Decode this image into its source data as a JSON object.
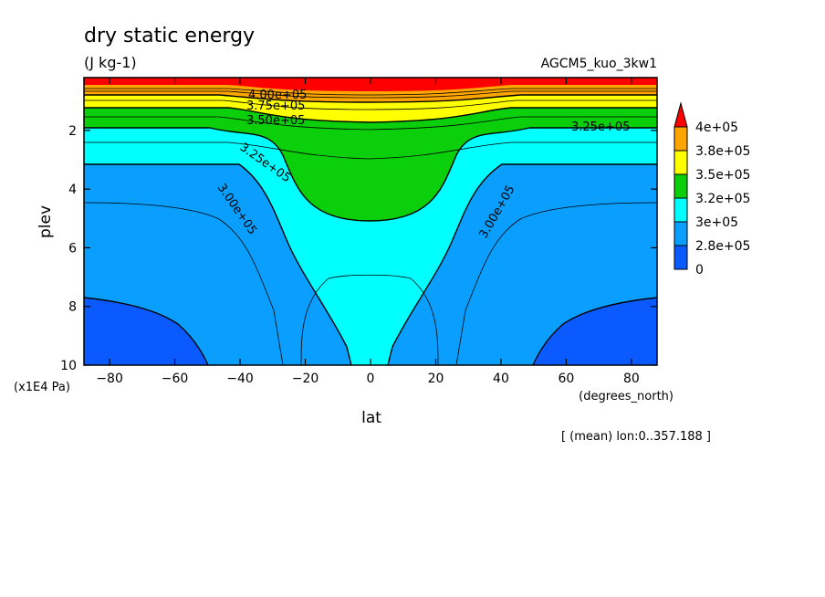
{
  "chart_data": {
    "type": "contour",
    "title": "dry static energy",
    "units": "(J kg-1)",
    "dataset": "AGCM5_kuo_3kw1",
    "xlabel": "lat",
    "xunits": "(degrees_north)",
    "ylabel": "plev",
    "yunits": "(x1E4 Pa)",
    "footnote": "[ (mean) lon:0..357.188 ]",
    "xlim": [
      -87.86,
      87.86
    ],
    "ylim": [
      10,
      0.2
    ],
    "x_ticks": [
      -80,
      -60,
      -40,
      -20,
      0,
      20,
      40,
      60,
      80
    ],
    "x_tick_labels": [
      "−80",
      "−60",
      "−40",
      "−20",
      "0",
      "20",
      "40",
      "60",
      "80"
    ],
    "y_ticks": [
      2,
      4,
      6,
      8,
      10
    ],
    "y_tick_labels": [
      "2",
      "4",
      "6",
      "8",
      "10"
    ],
    "color_levels": [
      {
        "label": "0",
        "color": "#0a5aff"
      },
      {
        "label": "2.8e+05",
        "color": "#0a9fff"
      },
      {
        "label": "3e+05",
        "color": "#00ffff"
      },
      {
        "label": "3.2e+05",
        "color": "#0acf0a"
      },
      {
        "label": "3.5e+05",
        "color": "#ffff00"
      },
      {
        "label": "3.8e+05",
        "color": "#ffa500"
      },
      {
        "label": "4e+05",
        "color": "#ff0000"
      }
    ],
    "colorbar_labels": [
      "4e+05",
      "3.8e+05",
      "3.5e+05",
      "3.2e+05",
      "3e+05",
      "2.8e+05",
      "0"
    ],
    "contour_labels": [
      {
        "text": "4.00e+05",
        "lat": -3,
        "plev": 0.5
      },
      {
        "text": "3.75e+05",
        "lat": -3,
        "plev": 0.85
      },
      {
        "text": "3.50e+05",
        "lat": -3,
        "plev": 1.4
      },
      {
        "text": "3.25e+05",
        "lat": 75,
        "plev": 1.85
      },
      {
        "text": "3.25e+05",
        "lat": -29,
        "plev": 2.8
      },
      {
        "text": "3.00e+05",
        "lat": -43,
        "plev": 4.6
      },
      {
        "text": "3.00e+05",
        "lat": 37,
        "plev": 4.6
      }
    ],
    "regions_plev_by_lat": {
      "lat": [
        -87.86,
        -80,
        -70,
        -60,
        -50,
        -40,
        -30,
        -20,
        -10,
        -5,
        0,
        5,
        10,
        20,
        30,
        40,
        50,
        60,
        70,
        80,
        87.86
      ],
      "top_380k": [
        0.55,
        0.55,
        0.55,
        0.55,
        0.55,
        0.55,
        0.5,
        0.45,
        0.42,
        0.4,
        0.4,
        0.4,
        0.42,
        0.45,
        0.5,
        0.55,
        0.55,
        0.55,
        0.55,
        0.55,
        0.55
      ],
      "top_350k": [
        1.05,
        1.05,
        1.05,
        1.05,
        1.05,
        1.05,
        1.0,
        0.9,
        0.8,
        0.75,
        0.75,
        0.75,
        0.8,
        0.9,
        1.0,
        1.05,
        1.05,
        1.05,
        1.05,
        1.05,
        1.05
      ],
      "top_320k": [
        1.8,
        1.8,
        1.8,
        1.8,
        1.8,
        1.8,
        1.7,
        1.6,
        1.55,
        1.55,
        1.55,
        1.55,
        1.55,
        1.6,
        1.7,
        1.8,
        1.8,
        1.8,
        1.8,
        1.8,
        1.8
      ],
      "boundary_320k_low": [
        2.3,
        2.3,
        2.3,
        2.3,
        2.4,
        2.5,
        2.7,
        3.0,
        4.6,
        5.0,
        5.0,
        5.0,
        4.6,
        3.0,
        2.7,
        2.5,
        2.4,
        2.3,
        2.3,
        2.3,
        2.3
      ],
      "boundary_300k": [
        3.0,
        3.0,
        3.0,
        3.0,
        3.0,
        3.0,
        3.4,
        6.4,
        7.0,
        7.0,
        7.0,
        7.0,
        7.0,
        6.4,
        3.4,
        3.0,
        3.0,
        3.0,
        3.0,
        3.0,
        3.0
      ],
      "boundary_280k": [
        7.7,
        7.6,
        7.7,
        8.1,
        10.0,
        null,
        null,
        null,
        null,
        null,
        null,
        null,
        null,
        null,
        null,
        null,
        10.0,
        8.1,
        7.7,
        7.6,
        7.7
      ]
    }
  }
}
